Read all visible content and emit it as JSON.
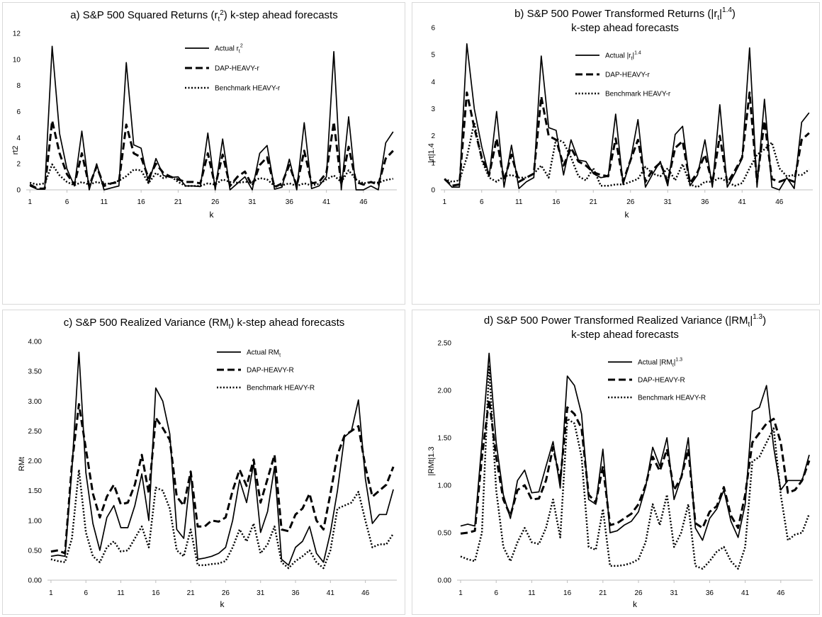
{
  "chart_data": [
    {
      "panel": "a",
      "type": "line",
      "title": "a) S&P 500 Squared Returns (rt²) k-step ahead forecasts",
      "title_lines": [
        "a) S&P 500 Squared Returns (r",
        "t",
        "2",
        ") k-step ahead forecasts"
      ],
      "xlabel": "k",
      "ylabel": "rt2",
      "ylim": [
        0,
        12
      ],
      "yticks": [
        0,
        2,
        4,
        6,
        8,
        10,
        12
      ],
      "ytick_labels": [
        "0",
        "2",
        "4",
        "6",
        "8",
        "10",
        "12"
      ],
      "xtick_labels": [
        "1",
        "6",
        "11",
        "16",
        "21",
        "26",
        "31",
        "36",
        "41",
        "46"
      ],
      "legend_position": "top-center",
      "series": [
        {
          "name": "Actual rt2",
          "legend_label": "Actual r",
          "legend_sub": "t",
          "legend_sup": "2",
          "style": "solid",
          "values": [
            0.3,
            0.05,
            0.05,
            11.0,
            4.3,
            1.6,
            0.3,
            4.5,
            0.0,
            2.0,
            0.0,
            0.15,
            0.3,
            9.75,
            3.45,
            3.2,
            0.5,
            2.4,
            1.1,
            0.95,
            1.0,
            0.3,
            0.3,
            0.25,
            4.35,
            0.0,
            3.9,
            0.0,
            0.5,
            1.0,
            0.0,
            2.8,
            3.4,
            0.05,
            0.2,
            2.35,
            0.0,
            5.15,
            0.1,
            0.3,
            1.0,
            10.6,
            0.0,
            5.6,
            0.0,
            0.0,
            0.3,
            0.0,
            3.6,
            4.45
          ]
        },
        {
          "name": "DAP-HEAVY-r",
          "legend_label": "DAP-HEAVY-r",
          "style": "dashed",
          "values": [
            0.4,
            0.1,
            0.1,
            5.3,
            2.8,
            1.2,
            0.4,
            2.8,
            0.3,
            1.8,
            0.3,
            0.5,
            0.6,
            5.0,
            2.8,
            2.5,
            0.9,
            2.0,
            1.3,
            1.0,
            0.8,
            0.6,
            0.6,
            0.5,
            2.8,
            0.3,
            2.7,
            0.3,
            1.0,
            1.4,
            0.3,
            1.9,
            2.5,
            0.2,
            0.5,
            1.9,
            0.3,
            3.0,
            0.5,
            0.6,
            1.3,
            5.2,
            0.4,
            3.3,
            0.6,
            0.4,
            0.6,
            0.4,
            2.4,
            3.0
          ]
        },
        {
          "name": "Benchmark HEAVY-r",
          "legend_label": "Benchmark HEAVY-r",
          "style": "dotted",
          "values": [
            0.55,
            0.4,
            0.5,
            1.95,
            1.1,
            0.6,
            0.35,
            0.6,
            0.4,
            0.6,
            0.45,
            0.5,
            0.7,
            1.05,
            1.55,
            1.5,
            0.5,
            1.3,
            0.9,
            1.05,
            0.6,
            0.3,
            0.3,
            0.3,
            0.5,
            0.4,
            0.8,
            0.6,
            0.55,
            0.6,
            0.6,
            0.9,
            0.8,
            0.3,
            0.35,
            0.5,
            0.3,
            0.5,
            0.35,
            0.45,
            0.8,
            1.1,
            0.6,
            1.5,
            0.8,
            0.5,
            0.6,
            0.55,
            0.75,
            0.85
          ]
        }
      ]
    },
    {
      "panel": "b",
      "type": "line",
      "title": "b) S&P 500 Power Transformed Returns (|rt|^1.4) k-step ahead forecasts",
      "title_lines": [
        "b) S&P 500 Power Transformed Returns (|r",
        "t",
        "|",
        "1.4",
        ")",
        "k-step ahead forecasts"
      ],
      "xlabel": "k",
      "ylabel": "|rt|1.4",
      "ylim": [
        0,
        6
      ],
      "yticks": [
        0,
        1,
        2,
        3,
        4,
        5,
        6
      ],
      "ytick_labels": [
        "0",
        "1",
        "2",
        "3",
        "4",
        "5",
        "6"
      ],
      "xtick_labels": [
        "1",
        "6",
        "11",
        "16",
        "21",
        "26",
        "31",
        "36",
        "41",
        "46"
      ],
      "legend_position": "top-center",
      "series": [
        {
          "name": "Actual |rt|1.4",
          "legend_label": "Actual |r",
          "legend_sub": "t",
          "legend_mid": "|",
          "legend_sup": "1.4",
          "style": "solid",
          "values": [
            0.4,
            0.1,
            0.1,
            5.4,
            3.0,
            1.6,
            0.5,
            2.9,
            0.1,
            1.65,
            0.05,
            0.3,
            0.45,
            4.95,
            2.3,
            2.2,
            0.55,
            1.85,
            1.1,
            1.05,
            0.6,
            0.45,
            0.5,
            2.8,
            0.2,
            1.1,
            2.6,
            0.1,
            0.6,
            1.05,
            0.15,
            2.05,
            2.35,
            0.15,
            0.55,
            1.85,
            0.1,
            3.15,
            0.1,
            0.6,
            1.15,
            5.25,
            0.1,
            3.35,
            0.1,
            0.0,
            0.45,
            0.05,
            2.5,
            2.85
          ]
        },
        {
          "name": "DAP-HEAVY-r",
          "legend_label": "DAP-HEAVY-r",
          "style": "dashed",
          "values": [
            0.4,
            0.15,
            0.2,
            3.6,
            2.3,
            1.2,
            0.55,
            1.9,
            0.35,
            1.3,
            0.3,
            0.45,
            0.6,
            3.45,
            2.0,
            1.85,
            0.9,
            1.55,
            1.05,
            0.9,
            0.65,
            0.55,
            0.5,
            1.9,
            0.3,
            1.1,
            1.85,
            0.3,
            0.75,
            1.0,
            0.3,
            1.55,
            1.8,
            0.25,
            0.65,
            1.3,
            0.25,
            2.0,
            0.25,
            0.7,
            1.2,
            3.6,
            0.3,
            2.55,
            0.4,
            0.3,
            0.4,
            0.3,
            1.85,
            2.1
          ]
        },
        {
          "name": "Benchmark HEAVY-r",
          "legend_label": "Benchmark HEAVY-r",
          "style": "dotted",
          "values": [
            0.4,
            0.3,
            0.35,
            1.2,
            2.5,
            1.1,
            0.45,
            0.3,
            0.5,
            0.55,
            0.45,
            0.45,
            0.6,
            0.9,
            0.45,
            1.9,
            1.75,
            1.2,
            0.5,
            0.35,
            0.8,
            0.15,
            0.15,
            0.2,
            0.2,
            0.3,
            0.4,
            0.85,
            0.6,
            0.5,
            0.8,
            0.35,
            0.95,
            0.2,
            0.1,
            0.3,
            0.3,
            0.45,
            0.3,
            0.15,
            0.25,
            0.8,
            1.3,
            1.5,
            1.75,
            0.8,
            0.5,
            0.55,
            0.55,
            0.75
          ]
        }
      ]
    },
    {
      "panel": "c",
      "type": "line",
      "title": "c) S&P 500 Realized Variance (RMt) k-step ahead forecasts",
      "title_lines": [
        "c) S&P 500 Realized Variance (RM",
        "t",
        ") k-step ahead forecasts"
      ],
      "xlabel": "k",
      "ylabel": "RMt",
      "ylim": [
        0,
        4
      ],
      "yticks": [
        0,
        0.5,
        1,
        1.5,
        2,
        2.5,
        3,
        3.5,
        4
      ],
      "ytick_labels": [
        "0.00",
        "0.50",
        "1.00",
        "1.50",
        "2.00",
        "2.50",
        "3.00",
        "3.50",
        "4.00"
      ],
      "xtick_labels": [
        "1",
        "6",
        "11",
        "16",
        "21",
        "26",
        "31",
        "36",
        "41",
        "46"
      ],
      "legend_position": "top-right",
      "series": [
        {
          "name": "Actual RMt",
          "legend_label": "Actual RM",
          "legend_sub": "t",
          "style": "solid",
          "values": [
            0.4,
            0.42,
            0.4,
            1.85,
            3.82,
            1.8,
            0.95,
            0.5,
            1.05,
            1.25,
            0.88,
            0.88,
            1.25,
            1.78,
            1.0,
            3.22,
            3.0,
            2.45,
            0.85,
            0.7,
            1.8,
            0.35,
            0.37,
            0.4,
            0.45,
            0.55,
            1.0,
            1.68,
            1.3,
            1.95,
            0.8,
            1.15,
            1.9,
            0.35,
            0.25,
            0.55,
            0.65,
            0.9,
            0.45,
            0.3,
            0.8,
            1.5,
            2.4,
            2.5,
            3.02,
            1.7,
            0.95,
            1.1,
            1.1,
            1.52
          ]
        },
        {
          "name": "DAP-HEAVY-R",
          "legend_label": "DAP-HEAVY-R",
          "style": "dashed",
          "values": [
            0.48,
            0.5,
            0.45,
            1.95,
            2.95,
            2.2,
            1.45,
            1.05,
            1.4,
            1.6,
            1.27,
            1.3,
            1.6,
            2.1,
            1.45,
            2.72,
            2.55,
            2.35,
            1.4,
            1.25,
            1.82,
            0.9,
            0.9,
            1.0,
            0.98,
            1.05,
            1.5,
            1.85,
            1.58,
            2.02,
            1.3,
            1.7,
            2.1,
            0.85,
            0.82,
            1.1,
            1.2,
            1.45,
            1.0,
            0.85,
            1.45,
            2.1,
            2.42,
            2.5,
            2.58,
            1.9,
            1.4,
            1.5,
            1.6,
            1.9
          ]
        },
        {
          "name": "Benchmark HEAVY-R",
          "legend_label": "Benchmark HEAVY-R",
          "style": "dotted",
          "values": [
            0.35,
            0.32,
            0.3,
            0.7,
            1.85,
            0.8,
            0.4,
            0.3,
            0.55,
            0.65,
            0.48,
            0.5,
            0.7,
            0.9,
            0.55,
            1.55,
            1.5,
            1.2,
            0.5,
            0.4,
            0.85,
            0.25,
            0.25,
            0.27,
            0.28,
            0.32,
            0.55,
            0.85,
            0.65,
            0.95,
            0.45,
            0.6,
            0.9,
            0.3,
            0.2,
            0.32,
            0.4,
            0.5,
            0.3,
            0.2,
            0.5,
            1.2,
            1.25,
            1.3,
            1.48,
            1.0,
            0.55,
            0.6,
            0.6,
            0.78
          ]
        }
      ]
    },
    {
      "panel": "d",
      "type": "line",
      "title": "d) S&P 500 Power Transformed Realized Variance (|RMt|^1.3) k-step ahead forecasts",
      "title_lines": [
        "d) S&P 500 Power Transformed Realized Variance (|RM",
        "t",
        "|",
        "1.3",
        ")",
        "k-step ahead forecasts"
      ],
      "xlabel": "k",
      "ylabel": "|RMt|1.3",
      "ylim": [
        0,
        2.5
      ],
      "yticks": [
        0,
        0.5,
        1,
        1.5,
        2,
        2.5
      ],
      "ytick_labels": [
        "0.00",
        "0.50",
        "1.00",
        "1.50",
        "2.00",
        "2.50"
      ],
      "xtick_labels": [
        "1",
        "6",
        "11",
        "16",
        "21",
        "26",
        "31",
        "36",
        "41",
        "46"
      ],
      "legend_position": "top-center",
      "series": [
        {
          "name": "Actual |RMt|1.3",
          "legend_label": "Actual |RM",
          "legend_sub": "t",
          "legend_mid": "|",
          "legend_sup": "1.3",
          "style": "solid",
          "values": [
            0.57,
            0.59,
            0.57,
            1.45,
            2.39,
            1.45,
            0.9,
            0.65,
            1.05,
            1.16,
            0.92,
            0.93,
            1.2,
            1.46,
            0.97,
            2.15,
            2.05,
            1.75,
            0.85,
            0.8,
            1.38,
            0.5,
            0.52,
            0.58,
            0.62,
            0.72,
            0.98,
            1.4,
            1.2,
            1.5,
            0.85,
            1.08,
            1.5,
            0.55,
            0.42,
            0.65,
            0.75,
            0.95,
            0.62,
            0.45,
            0.8,
            1.78,
            1.82,
            2.05,
            1.4,
            0.95,
            1.05,
            1.05,
            1.05,
            1.32
          ]
        },
        {
          "name": "DAP-HEAVY-R",
          "legend_label": "DAP-HEAVY-R",
          "style": "dashed",
          "values": [
            0.49,
            0.5,
            0.52,
            1.3,
            1.9,
            1.3,
            0.85,
            0.68,
            0.95,
            1.0,
            0.85,
            0.86,
            1.05,
            1.4,
            1.05,
            1.82,
            1.75,
            1.6,
            0.9,
            0.82,
            1.2,
            0.58,
            0.6,
            0.65,
            0.7,
            0.8,
            1.0,
            1.3,
            1.15,
            1.38,
            0.95,
            1.08,
            1.38,
            0.6,
            0.55,
            0.72,
            0.78,
            0.98,
            0.68,
            0.55,
            0.9,
            1.45,
            1.55,
            1.65,
            1.7,
            1.45,
            0.92,
            0.95,
            1.05,
            1.26
          ]
        },
        {
          "name": "Benchmark HEAVY-R",
          "legend_label": "Benchmark HEAVY-R",
          "style": "dotted",
          "values": [
            0.25,
            0.22,
            0.2,
            0.5,
            2.25,
            0.95,
            0.35,
            0.2,
            0.4,
            0.55,
            0.4,
            0.38,
            0.55,
            0.85,
            0.45,
            1.7,
            1.65,
            1.3,
            0.35,
            0.32,
            0.75,
            0.15,
            0.15,
            0.16,
            0.18,
            0.22,
            0.4,
            0.8,
            0.58,
            0.9,
            0.35,
            0.5,
            0.8,
            0.15,
            0.12,
            0.2,
            0.3,
            0.35,
            0.2,
            0.12,
            0.35,
            1.25,
            1.3,
            1.45,
            1.6,
            0.9,
            0.42,
            0.48,
            0.5,
            0.7
          ]
        }
      ]
    }
  ]
}
